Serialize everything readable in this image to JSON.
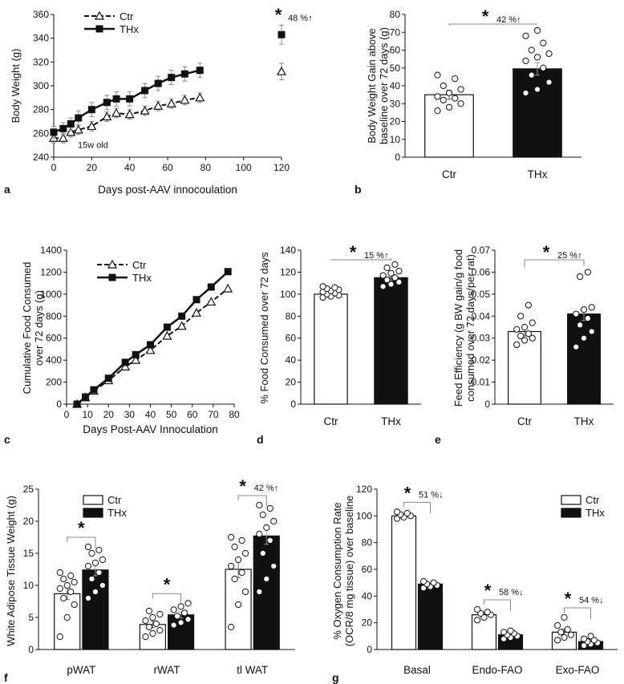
{
  "chart_data": [
    {
      "id": "a",
      "type": "line",
      "panel_label": "a",
      "xlabel": "Days post-AAV innocoulation",
      "ylabel": "Body Weight (g)",
      "xlim": [
        0,
        120
      ],
      "ylim": [
        240,
        360
      ],
      "xticks": [
        0,
        20,
        40,
        60,
        80,
        100,
        120
      ],
      "yticks": [
        240,
        260,
        280,
        300,
        320,
        340,
        360
      ],
      "legend": [
        "Ctr",
        "THx"
      ],
      "legend_position": "top-left",
      "annotation": "15w old",
      "endpoint_label": "48 %↑",
      "star": "*",
      "series": [
        {
          "name": "Ctr",
          "style": "dashed-triangle",
          "x": [
            0,
            5,
            9,
            13,
            20,
            28,
            33,
            40,
            48,
            55,
            62,
            69,
            77
          ],
          "y": [
            256,
            256,
            261,
            263,
            266,
            274,
            277,
            276,
            279,
            283,
            285,
            288,
            290
          ],
          "err": [
            4,
            4,
            4,
            4,
            4,
            4,
            4,
            4,
            4,
            4,
            4,
            4,
            4
          ],
          "end_x": 120,
          "end_y": 312,
          "end_err": 7
        },
        {
          "name": "THx",
          "style": "solid-square",
          "x": [
            0,
            5,
            9,
            13,
            20,
            28,
            33,
            40,
            48,
            55,
            62,
            69,
            77
          ],
          "y": [
            261,
            264,
            268,
            273,
            280,
            286,
            289,
            289,
            296,
            302,
            307,
            310,
            313
          ],
          "err": [
            5,
            5,
            5,
            6,
            6,
            6,
            6,
            6,
            6,
            6,
            6,
            6,
            6
          ],
          "end_x": 120,
          "end_y": 343,
          "end_err": 8
        }
      ]
    },
    {
      "id": "b",
      "type": "bar",
      "panel_label": "b",
      "ylabel": "Body Weight Gain above baseline over 72 days (g)",
      "ylim": [
        0,
        80
      ],
      "yticks": [
        0,
        10,
        20,
        30,
        40,
        50,
        60,
        70,
        80
      ],
      "categories": [
        "Ctr",
        "THx"
      ],
      "values": [
        35,
        49.5
      ],
      "err": [
        2.5,
        3.5
      ],
      "points": [
        [
          26,
          28,
          30,
          32,
          33,
          34,
          36,
          38,
          40,
          44,
          46
        ],
        [
          36,
          38,
          42,
          46,
          50,
          54,
          56,
          58,
          60,
          64,
          68,
          71
        ]
      ],
      "comparison": {
        "star": "*",
        "text": "42 %↑"
      }
    },
    {
      "id": "c",
      "type": "line",
      "panel_label": "c",
      "xlabel": "Days Post-AAV Innoculation",
      "ylabel": "Cumulative Food Consumed over 72 days  (g)",
      "xlim": [
        0,
        80
      ],
      "ylim": [
        0,
        1400
      ],
      "xticks": [
        0,
        10,
        20,
        30,
        40,
        50,
        60,
        70,
        80
      ],
      "yticks": [
        0,
        200,
        400,
        600,
        800,
        1000,
        1200,
        1400
      ],
      "legend": [
        "Ctr",
        "THx"
      ],
      "legend_position": "top-left",
      "series": [
        {
          "name": "Ctr",
          "style": "dashed-triangle",
          "x": [
            5,
            9,
            13,
            20,
            28,
            33,
            40,
            48,
            55,
            62,
            69,
            77
          ],
          "y": [
            0,
            60,
            120,
            215,
            340,
            400,
            490,
            620,
            710,
            830,
            930,
            1050
          ]
        },
        {
          "name": "THx",
          "style": "solid-square",
          "x": [
            5,
            9,
            13,
            20,
            28,
            33,
            40,
            48,
            55,
            62,
            69,
            77
          ],
          "y": [
            0,
            65,
            130,
            235,
            380,
            450,
            540,
            700,
            800,
            950,
            1065,
            1205
          ]
        }
      ]
    },
    {
      "id": "d",
      "type": "bar",
      "panel_label": "d",
      "ylabel": "% Food Consumed over 72 days",
      "ylim": [
        0,
        140
      ],
      "yticks": [
        0,
        20,
        40,
        60,
        80,
        100,
        120,
        140
      ],
      "categories": [
        "Ctr",
        "THx"
      ],
      "values": [
        100,
        115
      ],
      "err": [
        2.5,
        2.5
      ],
      "points": [
        [
          97,
          98,
          99,
          100,
          101,
          102,
          103,
          104,
          105,
          106,
          107
        ],
        [
          107,
          109,
          111,
          113,
          115,
          117,
          119,
          121,
          124,
          127
        ]
      ],
      "comparison": {
        "star": "*",
        "text": "15 %↑"
      }
    },
    {
      "id": "e",
      "type": "bar",
      "panel_label": "e",
      "ylabel": "Feed Efficiency (g BW gain/g food consumed over 72 days/per rat)",
      "ylim": [
        0,
        0.07
      ],
      "yticks": [
        0,
        0.01,
        0.02,
        0.03,
        0.04,
        0.05,
        0.06,
        0.07
      ],
      "categories": [
        "Ctr",
        "THx"
      ],
      "values": [
        0.033,
        0.041
      ],
      "err": [
        0.002,
        0.003
      ],
      "points": [
        [
          0.027,
          0.029,
          0.03,
          0.031,
          0.032,
          0.034,
          0.035,
          0.037,
          0.04,
          0.045
        ],
        [
          0.026,
          0.03,
          0.033,
          0.036,
          0.039,
          0.041,
          0.043,
          0.044,
          0.058,
          0.06
        ]
      ],
      "comparison": {
        "star": "*",
        "text": "25 %↑"
      }
    },
    {
      "id": "f",
      "type": "bar",
      "panel_label": "f",
      "ylabel": "White Adipose Tissue Weight (g)",
      "ylim": [
        0,
        25
      ],
      "yticks": [
        0,
        5,
        10,
        15,
        20,
        25
      ],
      "categories": [
        "pWAT",
        "rWAT",
        "tl WAT"
      ],
      "legend": [
        "Ctr",
        "THx"
      ],
      "legend_position": "top-left",
      "series": [
        {
          "name": "Ctr",
          "values": [
            8.7,
            3.9,
            12.5
          ],
          "err": [
            0.9,
            0.5,
            1.3
          ],
          "points": [
            [
              2,
              5,
              7,
              8,
              9,
              9.5,
              10,
              10.5,
              11,
              11.5,
              12
            ],
            [
              2,
              2.5,
              3,
              3.5,
              4,
              4.5,
              5,
              5.5,
              6
            ],
            [
              3.5,
              7,
              9,
              11,
              12,
              13,
              14,
              15,
              16,
              17,
              17.5
            ]
          ]
        },
        {
          "name": "THx",
          "values": [
            12.4,
            5.4,
            17.7
          ],
          "err": [
            0.9,
            0.5,
            1.3
          ],
          "points": [
            [
              8,
              9,
              10,
              11,
              12,
              13,
              13.5,
              14,
              15,
              15.5,
              16
            ],
            [
              3.8,
              4.2,
              4.7,
              5.2,
              5.7,
              6.2,
              6.7,
              7.2
            ],
            [
              9,
              11,
              13,
              15,
              17,
              18,
              19,
              20,
              21,
              22,
              22.5
            ]
          ]
        }
      ],
      "comparisons": [
        {
          "category": "pWAT",
          "star": "*",
          "text": ""
        },
        {
          "category": "rWAT",
          "star": "*",
          "text": ""
        },
        {
          "category": "tl WAT",
          "star": "*",
          "text": "42 %↑"
        }
      ]
    },
    {
      "id": "g",
      "type": "bar",
      "panel_label": "g",
      "ylabel": "% Oxygen Consumption Rate (OCR/8 mg tissue)  over baseline",
      "ylim": [
        0,
        120
      ],
      "yticks": [
        0,
        20,
        40,
        60,
        80,
        100,
        120
      ],
      "categories": [
        "Basal",
        "Endo-FAO",
        "Exo-FAO"
      ],
      "legend": [
        "Ctr",
        "THx"
      ],
      "legend_position": "top-right",
      "series": [
        {
          "name": "Ctr",
          "values": [
            100,
            26,
            13
          ],
          "err": [
            1.5,
            2,
            2.5
          ],
          "points": [
            [
              98,
              99,
              100,
              101,
              102,
              103
            ],
            [
              22,
              24,
              26,
              27,
              28,
              30
            ],
            [
              7,
              9,
              11,
              13,
              15,
              18,
              24
            ]
          ]
        },
        {
          "name": "THx",
          "values": [
            49,
            11,
            6
          ],
          "err": [
            1,
            1,
            1.2
          ],
          "points": [
            [
              46,
              47,
              48,
              49,
              50,
              51
            ],
            [
              8,
              9,
              10,
              11,
              12,
              13,
              14
            ],
            [
              3,
              4,
              5,
              6,
              7,
              8,
              10
            ]
          ]
        }
      ],
      "comparisons": [
        {
          "category": "Basal",
          "star": "*",
          "text": "51 %↓"
        },
        {
          "category": "Endo-FAO",
          "star": "*",
          "text": "58 %↓"
        },
        {
          "category": "Exo-FAO",
          "star": "*",
          "text": "54 %↓"
        }
      ]
    }
  ]
}
